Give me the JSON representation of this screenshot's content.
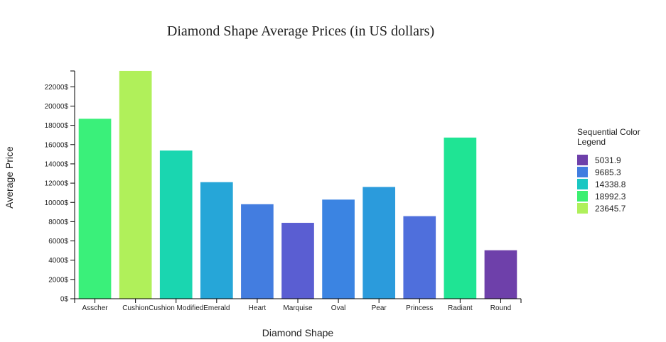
{
  "chart_data": {
    "type": "bar",
    "title": "Diamond Shape Average Prices (in US dollars)",
    "xlabel": "Diamond Shape",
    "ylabel": "Average Price",
    "categories": [
      "Asscher",
      "Cushion",
      "Cushion Modified",
      "Emerald",
      "Heart",
      "Marquise",
      "Oval",
      "Pear",
      "Princess",
      "Radiant",
      "Round"
    ],
    "values": [
      18680,
      23650,
      15380,
      12100,
      9810,
      7880,
      10290,
      11600,
      8570,
      16730,
      5032
    ],
    "bar_colors": [
      "#3af07a",
      "#b0f05a",
      "#1ad6b0",
      "#26a6d8",
      "#437de0",
      "#5a5ed2",
      "#3b84e2",
      "#2b9bdc",
      "#4f6fdc",
      "#1fe494",
      "#6e40aa"
    ],
    "ylim": [
      0,
      23645.7
    ],
    "yticks": [
      0,
      2000,
      4000,
      6000,
      8000,
      10000,
      12000,
      14000,
      16000,
      18000,
      20000,
      22000
    ],
    "ytick_labels": [
      "0$",
      "2000$",
      "4000$",
      "6000$",
      "8000$",
      "10000$",
      "12000$",
      "14000$",
      "16000$",
      "18000$",
      "20000$",
      "22000$"
    ],
    "grid": false,
    "legend": {
      "title_lines": [
        "Sequential Color",
        "Legend"
      ],
      "position": "right",
      "items": [
        {
          "label": "5031.9",
          "color": "#6e40aa"
        },
        {
          "label": "9685.3",
          "color": "#417de0"
        },
        {
          "label": "14338.8",
          "color": "#1ac7c2"
        },
        {
          "label": "18992.3",
          "color": "#3bef70"
        },
        {
          "label": "23645.7",
          "color": "#aff05b"
        }
      ]
    }
  }
}
